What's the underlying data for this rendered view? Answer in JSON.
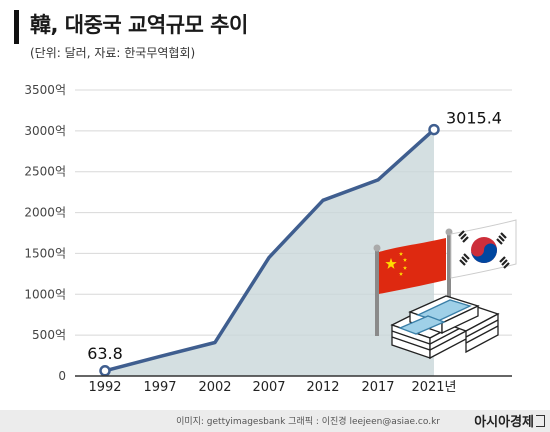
{
  "header": {
    "title": "韓, 대중국 교역규모 추이",
    "subtitle": "(단위: 달러, 자료: 한국무역협회)"
  },
  "chart_data": {
    "type": "area",
    "x": [
      "1992",
      "1997",
      "2002",
      "2007",
      "2012",
      "2017",
      "2021년"
    ],
    "values": [
      63.8,
      240,
      410,
      1450,
      2150,
      2400,
      3015.4
    ],
    "data_labels": {
      "first": "63.8",
      "last": "3015.4"
    },
    "ytick_labels": [
      "0",
      "500억",
      "1000억",
      "1500억",
      "2000억",
      "2500억",
      "3000억",
      "3500억"
    ],
    "ytick_values": [
      0,
      500,
      1000,
      1500,
      2000,
      2500,
      3000,
      3500
    ],
    "ylim": [
      0,
      3500
    ],
    "grid": true,
    "colors": {
      "line": "#3f5e8f",
      "fill": "#c9d7da",
      "grid": "#d8d8d8"
    }
  },
  "illustration": {
    "items": [
      "china-flag",
      "korea-flag",
      "money-stack"
    ],
    "colors": {
      "china_red": "#de2910",
      "star": "#ffde00",
      "taegeuk_red": "#cd2e3a",
      "taegeuk_blue": "#0047a0"
    }
  },
  "footer": {
    "credit": "이미지: gettyimagesbank   그래픽 : 이진경 leejeen@asiae.co.kr",
    "brand": "아시아경제"
  }
}
